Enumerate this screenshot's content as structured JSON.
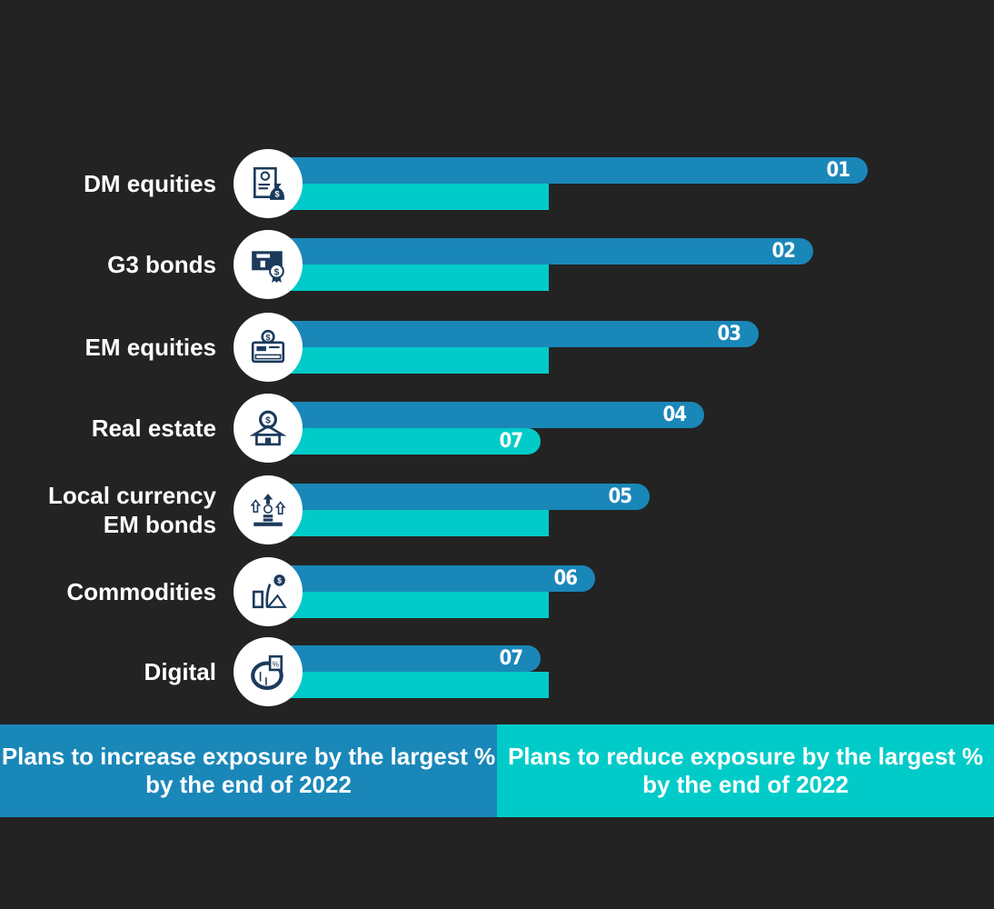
{
  "chart_data": {
    "type": "bar",
    "orientation": "horizontal",
    "categories": [
      "DM equities",
      "G3 bonds",
      "EM equities",
      "Real estate",
      "Local currency\nEM bonds",
      "Commodities",
      "Digital"
    ],
    "icons": [
      "certificate-money-bag-icon",
      "bond-certificate-icon",
      "stock-certificate-icon",
      "real-estate-icon",
      "currency-growth-icon",
      "commodities-icon",
      "digital-asset-icon"
    ],
    "series": [
      {
        "name": "Plans to increase exposure by the largest % by the end of 2022",
        "color": "#1a87b9",
        "ranks": [
          1,
          2,
          3,
          4,
          5,
          6,
          7
        ],
        "rank_labels": [
          "01",
          "02",
          "03",
          "04",
          "05",
          "06",
          "07"
        ]
      },
      {
        "name": "Plans to reduce exposure by the largest % by the end of 2022",
        "color": "#00cbc8",
        "ranks": [
          null,
          null,
          null,
          7,
          null,
          null,
          null
        ],
        "rank_labels": [
          "",
          "",
          "",
          "07",
          "",
          "",
          ""
        ]
      }
    ]
  },
  "legend": {
    "increase": "Plans to increase exposure by the largest % by the end of 2022",
    "reduce": "Plans to reduce exposure by the largest % by the end of 2022"
  }
}
